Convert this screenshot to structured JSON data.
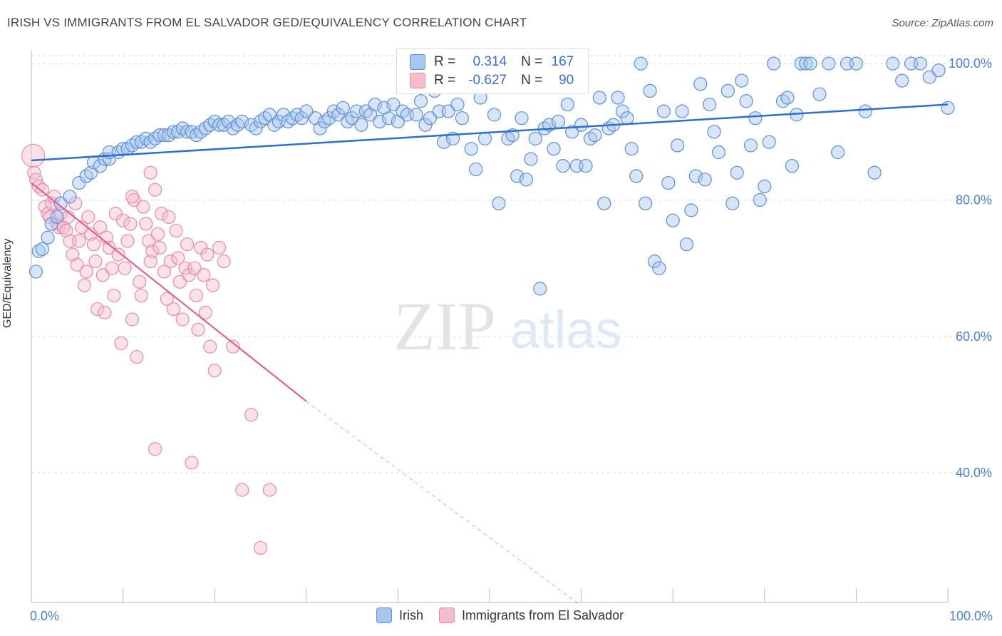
{
  "title": "IRISH VS IMMIGRANTS FROM EL SALVADOR GED/EQUIVALENCY CORRELATION CHART",
  "source": "Source: ZipAtlas.com",
  "watermark": {
    "zip": "ZIP",
    "atlas": "atlas"
  },
  "colors": {
    "irish_fill": "#a9c6ef",
    "irish_stroke": "#5b8fd6",
    "irish_line": "#2b6fd0",
    "salv_fill": "#f7bccd",
    "salv_stroke": "#e88aa8",
    "salv_line": "#e0608f",
    "grid": "#d9d9d9",
    "tick_text": "#4a7fd4"
  },
  "legend_top": {
    "r_label": "R =",
    "n_label": "N =",
    "irish": {
      "r": "0.314",
      "n": "167"
    },
    "salv": {
      "r": "-0.627",
      "n": "90"
    }
  },
  "legend_bottom": {
    "irish": "Irish",
    "salv": "Immigrants from El Salvador"
  },
  "chart_data": {
    "type": "scatter",
    "title": "IRISH VS IMMIGRANTS FROM EL SALVADOR GED/EQUIVALENCY CORRELATION CHART",
    "xlabel": "",
    "ylabel": "GED/Equivalency",
    "xlim": [
      0,
      100
    ],
    "ylim": [
      21,
      102
    ],
    "x_tick_labels": [
      "0.0%",
      "100.0%"
    ],
    "y_ticks": [
      40,
      60,
      80,
      100
    ],
    "y_tick_labels": [
      "40.0%",
      "60.0%",
      "80.0%",
      "100.0%"
    ],
    "grid": true,
    "legend_position": "top-center",
    "series": [
      {
        "name": "Irish",
        "R": 0.314,
        "N": 167,
        "trend": {
          "x": [
            0,
            100
          ],
          "y": [
            85.8,
            94.0
          ]
        },
        "points": [
          [
            0.5,
            69.5
          ],
          [
            0.8,
            72.5
          ],
          [
            1.2,
            72.8
          ],
          [
            1.8,
            74.5
          ],
          [
            2.2,
            76.5
          ],
          [
            2.8,
            77.5
          ],
          [
            3.2,
            79.5
          ],
          [
            4.2,
            80.5
          ],
          [
            5.2,
            82.5
          ],
          [
            6.0,
            83.5
          ],
          [
            6.5,
            84.0
          ],
          [
            6.8,
            85.5
          ],
          [
            7.5,
            85.0
          ],
          [
            8.0,
            86.0
          ],
          [
            8.5,
            86.0
          ],
          [
            8.5,
            87.0
          ],
          [
            9.5,
            87.0
          ],
          [
            10.0,
            87.5
          ],
          [
            10.5,
            87.5
          ],
          [
            11.0,
            88.0
          ],
          [
            11.5,
            88.5
          ],
          [
            12.0,
            88.5
          ],
          [
            12.5,
            89.0
          ],
          [
            13.0,
            88.5
          ],
          [
            13.5,
            89.0
          ],
          [
            14.0,
            89.5
          ],
          [
            14.5,
            89.5
          ],
          [
            15.0,
            89.5
          ],
          [
            15.5,
            90.0
          ],
          [
            16.0,
            90.0
          ],
          [
            16.5,
            90.5
          ],
          [
            17.0,
            90.0
          ],
          [
            17.5,
            90.0
          ],
          [
            18.0,
            89.5
          ],
          [
            18.5,
            90.0
          ],
          [
            19.0,
            90.5
          ],
          [
            19.5,
            91.0
          ],
          [
            20.0,
            91.5
          ],
          [
            20.5,
            91.0
          ],
          [
            21.0,
            91.0
          ],
          [
            21.5,
            91.5
          ],
          [
            22.0,
            90.5
          ],
          [
            22.5,
            91.0
          ],
          [
            23.0,
            91.5
          ],
          [
            24.0,
            91.0
          ],
          [
            24.5,
            90.5
          ],
          [
            25.0,
            91.5
          ],
          [
            25.5,
            92.0
          ],
          [
            26.0,
            92.5
          ],
          [
            26.5,
            91.0
          ],
          [
            27.0,
            91.5
          ],
          [
            27.5,
            92.5
          ],
          [
            28.0,
            91.5
          ],
          [
            28.5,
            92.0
          ],
          [
            29.0,
            92.5
          ],
          [
            29.5,
            92.0
          ],
          [
            30.0,
            93.0
          ],
          [
            31.0,
            92.0
          ],
          [
            31.5,
            90.5
          ],
          [
            32.0,
            91.5
          ],
          [
            32.5,
            92.0
          ],
          [
            33.0,
            93.0
          ],
          [
            33.5,
            92.5
          ],
          [
            34.0,
            93.5
          ],
          [
            34.5,
            91.5
          ],
          [
            35.0,
            92.0
          ],
          [
            35.5,
            93.0
          ],
          [
            36.0,
            91.0
          ],
          [
            36.5,
            93.0
          ],
          [
            37.0,
            92.5
          ],
          [
            37.5,
            94.0
          ],
          [
            38.0,
            91.5
          ],
          [
            38.5,
            93.5
          ],
          [
            39.0,
            92.0
          ],
          [
            39.5,
            94.0
          ],
          [
            40.0,
            91.5
          ],
          [
            40.5,
            93.0
          ],
          [
            41.0,
            92.5
          ],
          [
            42.0,
            92.5
          ],
          [
            42.5,
            94.5
          ],
          [
            43.0,
            91.0
          ],
          [
            43.5,
            92.0
          ],
          [
            44.0,
            96.0
          ],
          [
            44.5,
            93.0
          ],
          [
            45.0,
            88.5
          ],
          [
            45.5,
            93.0
          ],
          [
            46.0,
            89.0
          ],
          [
            46.5,
            94.0
          ],
          [
            47.0,
            92.0
          ],
          [
            48.0,
            87.5
          ],
          [
            48.5,
            84.5
          ],
          [
            49.0,
            95.0
          ],
          [
            49.5,
            89.0
          ],
          [
            50.5,
            92.5
          ],
          [
            51.0,
            79.5
          ],
          [
            52.0,
            89.0
          ],
          [
            52.5,
            89.5
          ],
          [
            53.0,
            83.5
          ],
          [
            53.5,
            92.0
          ],
          [
            54.0,
            83.0
          ],
          [
            54.5,
            86.0
          ],
          [
            55.0,
            89.0
          ],
          [
            55.5,
            67.0
          ],
          [
            56.0,
            90.5
          ],
          [
            56.5,
            91.0
          ],
          [
            57.0,
            87.5
          ],
          [
            57.5,
            91.5
          ],
          [
            58.0,
            85.0
          ],
          [
            58.5,
            94.0
          ],
          [
            59.0,
            90.0
          ],
          [
            59.5,
            85.0
          ],
          [
            60.0,
            91.0
          ],
          [
            60.5,
            85.0
          ],
          [
            61.0,
            89.0
          ],
          [
            61.5,
            89.5
          ],
          [
            62.0,
            95.0
          ],
          [
            62.5,
            79.5
          ],
          [
            63.0,
            90.5
          ],
          [
            63.5,
            91.0
          ],
          [
            64.0,
            95.0
          ],
          [
            64.5,
            93.0
          ],
          [
            65.0,
            92.0
          ],
          [
            65.5,
            87.5
          ],
          [
            66.0,
            83.5
          ],
          [
            66.5,
            100.0
          ],
          [
            67.0,
            79.5
          ],
          [
            67.5,
            96.0
          ],
          [
            68.0,
            71.0
          ],
          [
            68.5,
            70.0
          ],
          [
            69.0,
            93.0
          ],
          [
            69.5,
            82.5
          ],
          [
            70.0,
            77.0
          ],
          [
            70.5,
            88.0
          ],
          [
            71.0,
            93.0
          ],
          [
            71.5,
            73.5
          ],
          [
            72.0,
            78.5
          ],
          [
            72.5,
            83.5
          ],
          [
            73.0,
            97.0
          ],
          [
            73.5,
            83.0
          ],
          [
            74.0,
            94.0
          ],
          [
            74.5,
            90.0
          ],
          [
            75.0,
            87.0
          ],
          [
            76.0,
            96.0
          ],
          [
            76.5,
            79.5
          ],
          [
            77.0,
            84.0
          ],
          [
            77.5,
            97.5
          ],
          [
            78.0,
            94.5
          ],
          [
            78.5,
            88.0
          ],
          [
            79.0,
            92.0
          ],
          [
            79.5,
            80.0
          ],
          [
            80.0,
            82.0
          ],
          [
            80.5,
            88.5
          ],
          [
            81.0,
            100.0
          ],
          [
            82.0,
            94.5
          ],
          [
            82.5,
            95.0
          ],
          [
            83.0,
            85.0
          ],
          [
            83.5,
            92.5
          ],
          [
            84.0,
            100.0
          ],
          [
            84.5,
            100.0
          ],
          [
            85.0,
            100.0
          ],
          [
            86.0,
            95.5
          ],
          [
            87.0,
            100.0
          ],
          [
            88.0,
            87.0
          ],
          [
            89.0,
            100.0
          ],
          [
            90.0,
            100.0
          ],
          [
            91.0,
            93.0
          ],
          [
            92.0,
            84.0
          ],
          [
            94.0,
            100.0
          ],
          [
            95.0,
            97.5
          ],
          [
            96.0,
            100.0
          ],
          [
            97.0,
            100.0
          ],
          [
            98.0,
            98.0
          ],
          [
            99.0,
            99.0
          ],
          [
            100.0,
            93.5
          ]
        ]
      },
      {
        "name": "Immigrants from El Salvador",
        "R": -0.627,
        "N": 90,
        "trend": {
          "x": [
            0,
            30
          ],
          "y": [
            82.5,
            50.5
          ]
        },
        "trend_extension": {
          "x": [
            30,
            60
          ],
          "y": [
            50.5,
            20.5
          ]
        },
        "points": [
          [
            0.2,
            86.5
          ],
          [
            0.3,
            84.0
          ],
          [
            0.5,
            83.0
          ],
          [
            0.8,
            82.0
          ],
          [
            1.2,
            81.5
          ],
          [
            1.5,
            79.0
          ],
          [
            1.8,
            78.0
          ],
          [
            2.0,
            77.5
          ],
          [
            2.2,
            79.5
          ],
          [
            2.5,
            80.5
          ],
          [
            2.8,
            76.5
          ],
          [
            3.0,
            76.0
          ],
          [
            3.2,
            78.0
          ],
          [
            3.5,
            76.0
          ],
          [
            3.8,
            75.5
          ],
          [
            4.0,
            77.5
          ],
          [
            4.2,
            74.0
          ],
          [
            4.5,
            72.0
          ],
          [
            4.8,
            79.5
          ],
          [
            5.0,
            70.5
          ],
          [
            5.2,
            74.0
          ],
          [
            5.5,
            76.0
          ],
          [
            5.8,
            67.5
          ],
          [
            6.0,
            69.5
          ],
          [
            6.2,
            77.5
          ],
          [
            6.5,
            75.0
          ],
          [
            6.8,
            73.5
          ],
          [
            7.0,
            71.0
          ],
          [
            7.2,
            64.0
          ],
          [
            7.5,
            76.0
          ],
          [
            7.8,
            69.0
          ],
          [
            8.0,
            63.5
          ],
          [
            8.2,
            74.5
          ],
          [
            8.5,
            73.0
          ],
          [
            8.8,
            70.0
          ],
          [
            9.0,
            66.0
          ],
          [
            9.2,
            78.0
          ],
          [
            9.5,
            72.0
          ],
          [
            9.8,
            59.0
          ],
          [
            10.0,
            77.0
          ],
          [
            10.2,
            70.0
          ],
          [
            10.5,
            74.0
          ],
          [
            10.8,
            76.5
          ],
          [
            11.0,
            62.5
          ],
          [
            11.2,
            80.0
          ],
          [
            11.5,
            57.0
          ],
          [
            11.8,
            68.0
          ],
          [
            12.0,
            66.0
          ],
          [
            12.2,
            79.0
          ],
          [
            12.5,
            76.5
          ],
          [
            12.8,
            74.0
          ],
          [
            13.0,
            71.0
          ],
          [
            13.2,
            72.5
          ],
          [
            13.5,
            43.5
          ],
          [
            13.8,
            75.0
          ],
          [
            14.0,
            73.0
          ],
          [
            14.2,
            78.0
          ],
          [
            14.5,
            69.5
          ],
          [
            14.8,
            65.5
          ],
          [
            15.0,
            77.5
          ],
          [
            15.2,
            71.0
          ],
          [
            15.5,
            64.0
          ],
          [
            15.8,
            75.5
          ],
          [
            16.0,
            71.5
          ],
          [
            16.2,
            68.0
          ],
          [
            16.5,
            62.5
          ],
          [
            16.8,
            70.0
          ],
          [
            17.0,
            73.5
          ],
          [
            17.2,
            69.0
          ],
          [
            17.5,
            41.5
          ],
          [
            17.8,
            70.0
          ],
          [
            18.0,
            66.0
          ],
          [
            18.2,
            61.0
          ],
          [
            18.5,
            73.0
          ],
          [
            18.8,
            69.0
          ],
          [
            19.0,
            63.5
          ],
          [
            19.2,
            72.0
          ],
          [
            19.5,
            58.5
          ],
          [
            19.8,
            67.5
          ],
          [
            20.0,
            55.0
          ],
          [
            20.5,
            73.0
          ],
          [
            21.0,
            71.0
          ],
          [
            22.0,
            58.5
          ],
          [
            23.0,
            37.5
          ],
          [
            24.0,
            48.5
          ],
          [
            25.0,
            29.0
          ],
          [
            26.0,
            37.5
          ],
          [
            13.0,
            84.0
          ],
          [
            13.5,
            81.5
          ],
          [
            11.0,
            80.5
          ]
        ]
      }
    ]
  }
}
